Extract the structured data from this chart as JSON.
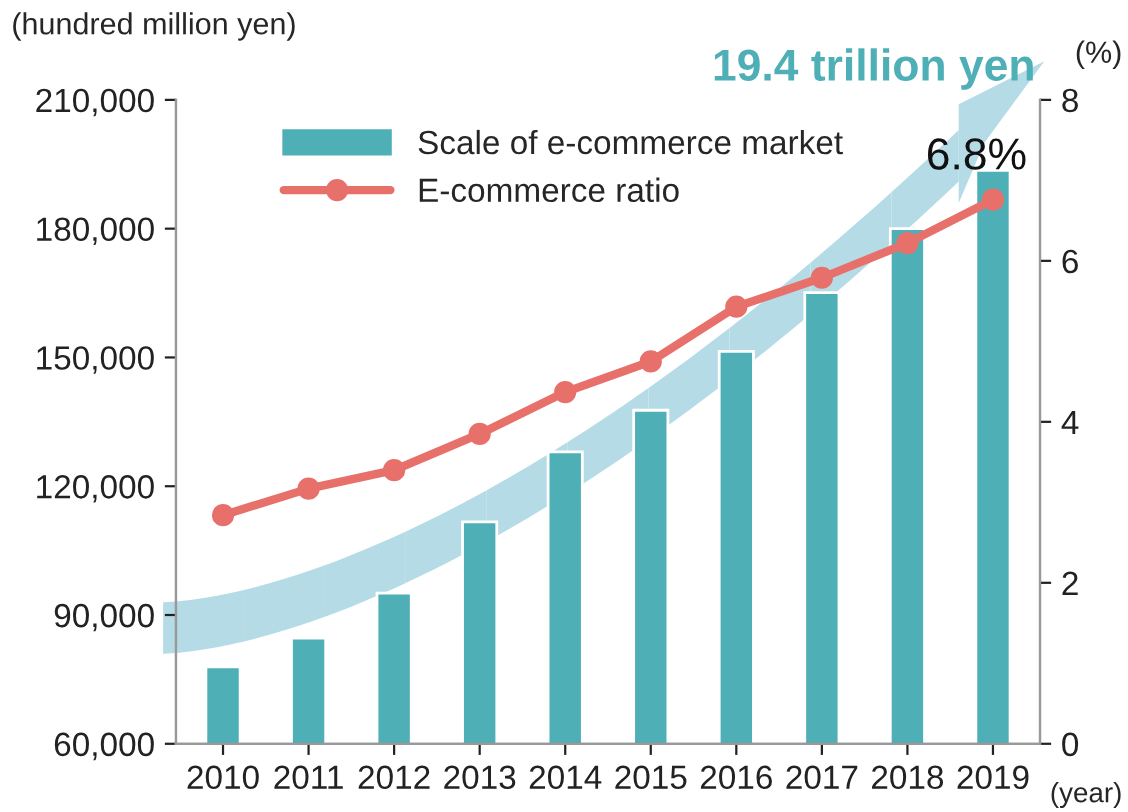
{
  "chart_data": {
    "type": "bar",
    "categories": [
      "2010",
      "2011",
      "2012",
      "2013",
      "2014",
      "2015",
      "2016",
      "2017",
      "2018",
      "2019"
    ],
    "series": [
      {
        "name": "Scale of e-commerce market",
        "color": "#4fafb6",
        "values": [
          77900,
          84600,
          95100,
          111700,
          128000,
          137700,
          151400,
          165100,
          180000,
          193600
        ]
      },
      {
        "name": "E-commerce ratio",
        "type": "line",
        "axis": "y2",
        "color": "#e8706b",
        "marker": "circle",
        "values": [
          2.84,
          3.17,
          3.4,
          3.85,
          4.37,
          4.75,
          5.43,
          5.79,
          6.22,
          6.76
        ]
      }
    ],
    "ylabel": "(hundred million yen)",
    "y2label": "(%)",
    "xlabel": "(year)",
    "ylim": [
      60000,
      210000
    ],
    "yticks": [
      {
        "value": 60000,
        "label": "60,000"
      },
      {
        "value": 90000,
        "label": "90,000"
      },
      {
        "value": 120000,
        "label": "120,000"
      },
      {
        "value": 150000,
        "label": "150,000"
      },
      {
        "value": 180000,
        "label": "180,000"
      },
      {
        "value": 210000,
        "label": "210,000"
      }
    ],
    "y2lim": [
      0,
      8
    ],
    "y2ticks": [
      0,
      2,
      4,
      6,
      8
    ],
    "annotations": [
      "19.4 trillion yen",
      "6.8%"
    ],
    "legend": "top left",
    "grid": false
  }
}
